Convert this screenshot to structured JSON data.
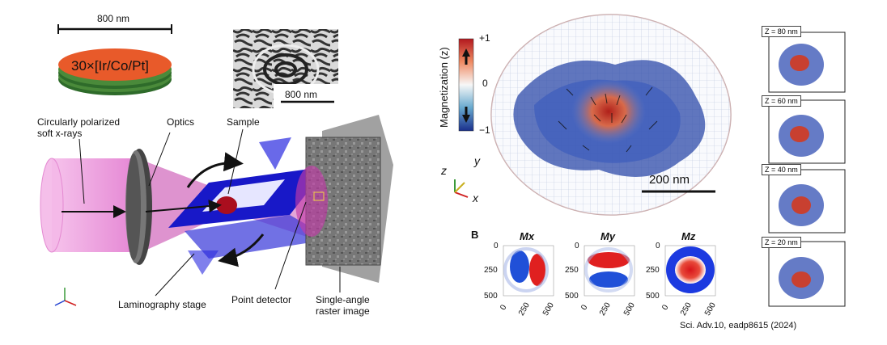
{
  "left_panel": {
    "scale_top": "800 nm",
    "disk_label": "30×[Ir/Co/Pt]",
    "scale_inset": "800 nm",
    "label_xray": "Circularly polarized\nsoft x-rays",
    "label_optics": "Optics",
    "label_sample": "Sample",
    "label_stage": "Laminography stage",
    "label_detector": "Point detector",
    "label_raster": "Single-angle\nraster image",
    "axis_icon": "xyz-axes-icon"
  },
  "right_panel": {
    "colorbar_title": "Magnetization (z)",
    "colorbar_ticks": [
      "+1",
      "0",
      "−1"
    ],
    "axes": {
      "z": "z",
      "y": "y",
      "x": "x"
    },
    "scale_3d": "200 nm",
    "panel_b_letter": "B",
    "maps": [
      {
        "title": "Mx",
        "yticks": [
          "0",
          "250",
          "500"
        ],
        "xticks": [
          "0",
          "250",
          "500"
        ]
      },
      {
        "title": "My",
        "yticks": [
          "0",
          "250",
          "500"
        ],
        "xticks": [
          "0",
          "250",
          "500"
        ]
      },
      {
        "title": "Mz",
        "yticks": [
          "0",
          "250",
          "500"
        ],
        "xticks": [
          "0",
          "250",
          "500"
        ]
      }
    ],
    "slices": [
      "Z = 80 nm",
      "Z = 60 nm",
      "Z = 40 nm",
      "Z = 20 nm"
    ],
    "citation": "Sci. Adv.10, eadp8615 (2024)"
  },
  "colors": {
    "disk_top": "#e85a2a",
    "disk_layer_green": "#4a8a3a",
    "beam_pink": "#e48ad2",
    "beam_magenta": "#c23aa8",
    "stage_blue": "#1818c8",
    "sample_red": "#aa0e1e",
    "mag_red": "#c8281e",
    "mag_blue": "#1c3aa0"
  }
}
